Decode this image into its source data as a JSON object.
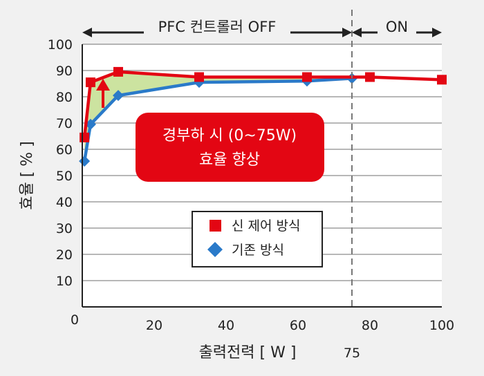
{
  "chart_data": {
    "type": "line",
    "xlabel": "출력전력 [ W ]",
    "ylabel": "효율 [ % ]",
    "xlim": [
      0,
      100
    ],
    "ylim": [
      0,
      100
    ],
    "x_ticks": [
      "20",
      "40",
      "60",
      "80",
      "100"
    ],
    "y_ticks": [
      "10",
      "20",
      "30",
      "40",
      "50",
      "60",
      "70",
      "80",
      "90",
      "100"
    ],
    "origin_label": "0",
    "marker_x": 75,
    "marker_label": "75",
    "grid": "horizontal",
    "series": [
      {
        "name": "신 제어 방식",
        "color": "#e30613",
        "marker": "square",
        "x": [
          0.6,
          2.3,
          10,
          32.5,
          62.5,
          80,
          100
        ],
        "y": [
          64.5,
          85.5,
          89.5,
          87.5,
          87.5,
          87.5,
          86.5
        ]
      },
      {
        "name": "기존 방식",
        "color": "#2a7ac9",
        "marker": "diamond",
        "x": [
          0.6,
          2.3,
          10,
          32.5,
          62.5,
          75
        ],
        "y": [
          55.5,
          69.5,
          80.5,
          85.5,
          86,
          87
        ]
      }
    ],
    "fill_between": {
      "color": "#cce3a0",
      "x_range": [
        0.6,
        75
      ]
    },
    "bands": [
      {
        "label": "PFC 컨트롤러 OFF",
        "x_from": 0,
        "x_to": 75
      },
      {
        "label": "ON",
        "x_from": 75,
        "x_to": 100
      }
    ],
    "callout": {
      "lines": [
        "경부하 시 (0~75W)",
        "효율 향상"
      ],
      "color": "#e30613"
    },
    "legend": {
      "placement": "lower-right",
      "items": [
        "신 제어 방식",
        "기존 방식"
      ]
    },
    "arrow_color": "#e30613"
  }
}
